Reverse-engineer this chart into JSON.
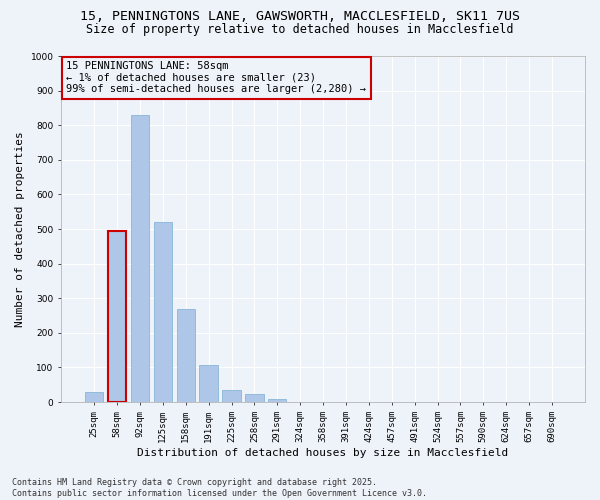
{
  "title1": "15, PENNINGTONS LANE, GAWSWORTH, MACCLESFIELD, SK11 7US",
  "title2": "Size of property relative to detached houses in Macclesfield",
  "xlabel": "Distribution of detached houses by size in Macclesfield",
  "ylabel": "Number of detached properties",
  "categories": [
    "25sqm",
    "58sqm",
    "92sqm",
    "125sqm",
    "158sqm",
    "191sqm",
    "225sqm",
    "258sqm",
    "291sqm",
    "324sqm",
    "358sqm",
    "391sqm",
    "424sqm",
    "457sqm",
    "491sqm",
    "524sqm",
    "557sqm",
    "590sqm",
    "624sqm",
    "657sqm",
    "690sqm"
  ],
  "values": [
    28,
    495,
    830,
    520,
    270,
    108,
    35,
    22,
    8,
    0,
    0,
    0,
    0,
    0,
    0,
    0,
    0,
    0,
    0,
    0,
    0
  ],
  "bar_color": "#aec6e8",
  "bar_edge_color": "#7bafd4",
  "highlight_bar_index": 1,
  "highlight_bar_edge_color": "#cc0000",
  "annotation_text": "15 PENNINGTONS LANE: 58sqm\n← 1% of detached houses are smaller (23)\n99% of semi-detached houses are larger (2,280) →",
  "annotation_box_edge_color": "#cc0000",
  "ylim": [
    0,
    1000
  ],
  "yticks": [
    0,
    100,
    200,
    300,
    400,
    500,
    600,
    700,
    800,
    900,
    1000
  ],
  "background_color": "#eef2f9",
  "grid_color": "#ffffff",
  "footer_text": "Contains HM Land Registry data © Crown copyright and database right 2025.\nContains public sector information licensed under the Open Government Licence v3.0.",
  "title1_fontsize": 9.5,
  "title2_fontsize": 8.5,
  "xlabel_fontsize": 8,
  "ylabel_fontsize": 8,
  "tick_fontsize": 6.5,
  "annotation_fontsize": 7.5,
  "footer_fontsize": 6
}
